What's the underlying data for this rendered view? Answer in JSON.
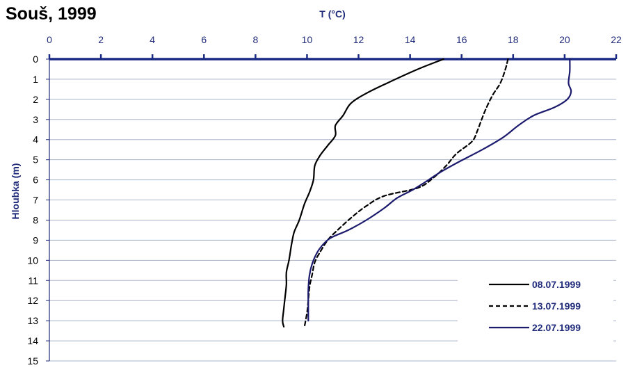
{
  "chart_data": {
    "type": "line",
    "title": "Souš, 1999",
    "xlabel": "T (°C)",
    "ylabel": "Hloubka (m)",
    "xlim": [
      0,
      22
    ],
    "ylim": [
      0,
      15
    ],
    "x_ticks": [
      "0",
      "2",
      "4",
      "6",
      "8",
      "10",
      "12",
      "14",
      "16",
      "18",
      "20",
      "22"
    ],
    "y_ticks": [
      "0",
      "1",
      "2",
      "3",
      "4",
      "5",
      "6",
      "7",
      "8",
      "9",
      "10",
      "11",
      "12",
      "13",
      "14",
      "15"
    ],
    "x_axis_position": "top",
    "y_inverted": true,
    "grid": "horizontal",
    "legend_position": "bottom-right",
    "series": [
      {
        "name": "08.07.1999",
        "style": "solid",
        "color": "#000000",
        "points": [
          [
            15.3,
            0
          ],
          [
            14.3,
            0.5
          ],
          [
            13.1,
            1.2
          ],
          [
            12.3,
            1.7
          ],
          [
            11.7,
            2.2
          ],
          [
            11.4,
            2.8
          ],
          [
            11.1,
            3.3
          ],
          [
            11.1,
            3.8
          ],
          [
            10.8,
            4.3
          ],
          [
            10.5,
            4.8
          ],
          [
            10.3,
            5.3
          ],
          [
            10.25,
            6.0
          ],
          [
            10.1,
            6.6
          ],
          [
            9.9,
            7.2
          ],
          [
            9.7,
            8.0
          ],
          [
            9.5,
            8.6
          ],
          [
            9.4,
            9.2
          ],
          [
            9.3,
            10.0
          ],
          [
            9.2,
            10.6
          ],
          [
            9.2,
            11.2
          ],
          [
            9.15,
            11.8
          ],
          [
            9.1,
            12.4
          ],
          [
            9.05,
            13.0
          ],
          [
            9.1,
            13.3
          ]
        ]
      },
      {
        "name": "13.07.1999",
        "style": "dashed",
        "color": "#000000",
        "points": [
          [
            17.8,
            0
          ],
          [
            17.7,
            0.5
          ],
          [
            17.5,
            1.2
          ],
          [
            17.2,
            1.8
          ],
          [
            16.9,
            2.6
          ],
          [
            16.6,
            3.6
          ],
          [
            16.4,
            4.1
          ],
          [
            15.8,
            4.7
          ],
          [
            15.4,
            5.3
          ],
          [
            14.9,
            5.9
          ],
          [
            14.3,
            6.4
          ],
          [
            13.0,
            6.8
          ],
          [
            12.3,
            7.3
          ],
          [
            11.7,
            7.9
          ],
          [
            11.1,
            8.6
          ],
          [
            10.8,
            9.0
          ],
          [
            10.5,
            9.6
          ],
          [
            10.3,
            10.1
          ],
          [
            10.2,
            10.7
          ],
          [
            10.1,
            11.3
          ],
          [
            10.05,
            12.0
          ],
          [
            10.0,
            12.6
          ],
          [
            9.9,
            13.3
          ]
        ]
      },
      {
        "name": "22.07.1999",
        "style": "solid",
        "color": "#1b1a6d",
        "points": [
          [
            20.2,
            0
          ],
          [
            20.2,
            0.6
          ],
          [
            20.15,
            1.2
          ],
          [
            20.25,
            1.6
          ],
          [
            20.1,
            2.0
          ],
          [
            19.6,
            2.4
          ],
          [
            18.8,
            2.8
          ],
          [
            18.2,
            3.3
          ],
          [
            17.6,
            3.9
          ],
          [
            16.8,
            4.5
          ],
          [
            15.9,
            5.1
          ],
          [
            15.2,
            5.6
          ],
          [
            14.6,
            6.1
          ],
          [
            14.1,
            6.5
          ],
          [
            13.5,
            6.9
          ],
          [
            13.0,
            7.4
          ],
          [
            12.3,
            8.0
          ],
          [
            11.6,
            8.5
          ],
          [
            10.9,
            8.9
          ],
          [
            10.5,
            9.4
          ],
          [
            10.25,
            10.0
          ],
          [
            10.1,
            10.7
          ],
          [
            10.05,
            11.5
          ],
          [
            10.05,
            12.2
          ],
          [
            10.05,
            13.0
          ]
        ]
      }
    ]
  }
}
